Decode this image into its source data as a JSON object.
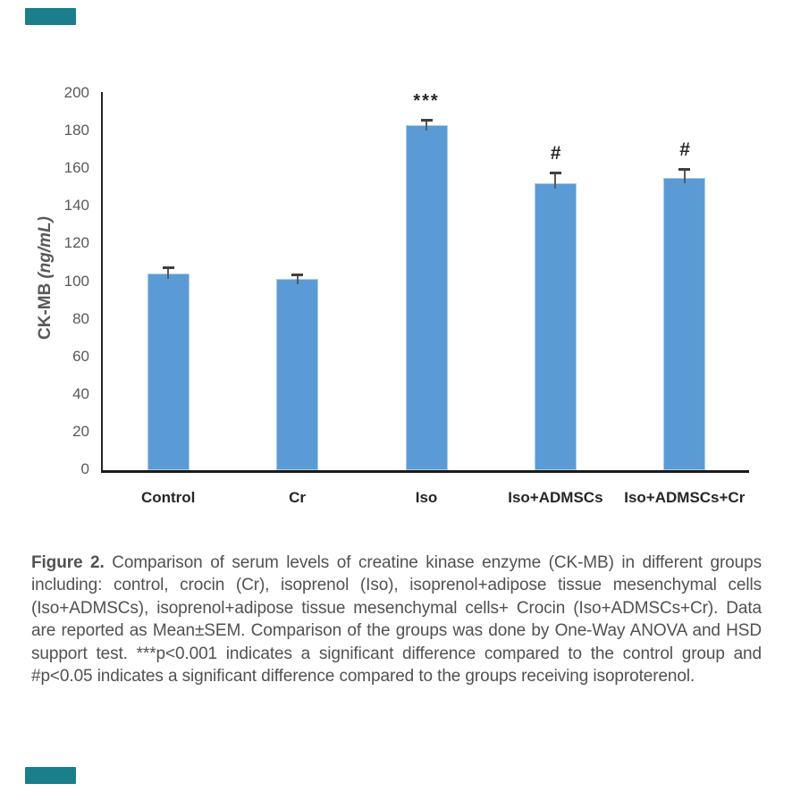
{
  "decorations": {
    "corner_color": "#1a7f8b"
  },
  "chart_data": {
    "type": "bar",
    "title": "",
    "categories": [
      "Control",
      "Cr",
      "Iso",
      "Iso+ADMSCs",
      "Iso+ADMSCs+Cr"
    ],
    "values": [
      104,
      101,
      183,
      152,
      155
    ],
    "errors": [
      4,
      3,
      3,
      6,
      5
    ],
    "annotations": [
      "",
      "",
      "***",
      "#",
      "#"
    ],
    "ylabel": "CK-MB (ng/mL)",
    "ylabel_main": "CK-MB",
    "ylabel_unit": "(ng/mL)",
    "xlabel": "",
    "ylim": [
      0,
      200
    ],
    "ytick_step": 20,
    "grid": false,
    "legend": false,
    "bar_color": "#5b9bd5",
    "axis_color": "#262626",
    "tick_label_color": "#595959",
    "category_label_color": "#262626",
    "error_bar_color": "#595959"
  },
  "caption": {
    "label": "Figure 2.",
    "text": " Comparison of serum levels of creatine kinase enzyme (CK-MB) in different groups including: control, crocin (Cr), isoprenol (Iso), isoprenol+adipose tissue mesenchymal cells (Iso+ADMSCs), isoprenol+adipose tissue mesenchymal cells+ Crocin (Iso+ADMSCs+Cr). Data are reported as Mean±SEM. Comparison of the groups was done by One-Way ANOVA and HSD support test. ***p<0.001 indicates a significant difference compared to the control group and #p<0.05 indicates a significant difference compared to the groups receiving isoproterenol."
  }
}
